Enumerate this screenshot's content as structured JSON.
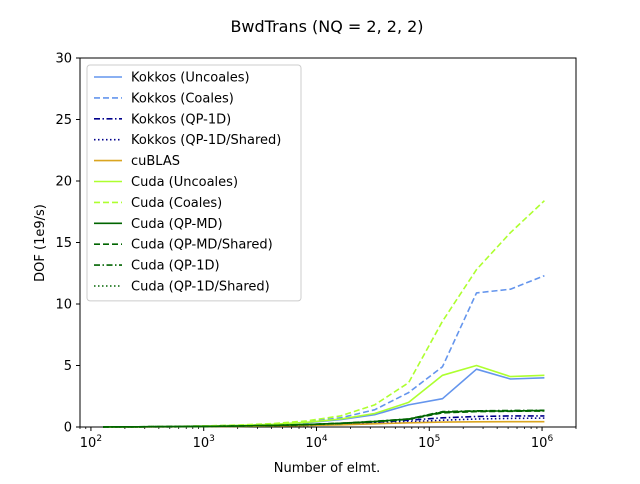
{
  "chart_data": {
    "type": "line",
    "title": "BwdTrans (NQ = 2, 2, 2)",
    "xlabel": "Number of elmt.",
    "ylabel": "DOF (1e9/s)",
    "xscale": "log",
    "xlim": [
      80,
      2000000
    ],
    "ylim": [
      0,
      30
    ],
    "yticks": [
      0,
      5,
      10,
      15,
      20,
      25,
      30
    ],
    "ytick_labels": [
      "0",
      "5",
      "10",
      "15",
      "20",
      "25",
      "30"
    ],
    "xticks": [
      100,
      1000,
      10000,
      100000,
      1000000
    ],
    "xtick_labels": [
      {
        "base": "10",
        "exp": "2"
      },
      {
        "base": "10",
        "exp": "3"
      },
      {
        "base": "10",
        "exp": "4"
      },
      {
        "base": "10",
        "exp": "5"
      },
      {
        "base": "10",
        "exp": "6"
      }
    ],
    "grid": false,
    "legend_position": "upper-left",
    "x": [
      128,
      256,
      512,
      1024,
      2048,
      4096,
      8192,
      16384,
      32768,
      65536,
      131072,
      262144,
      524288,
      1048576
    ],
    "series": [
      {
        "name": "Kokkos (Uncoales)",
        "color": "#6495ed",
        "dash": "solid",
        "values": [
          0.01,
          0.02,
          0.04,
          0.07,
          0.12,
          0.2,
          0.35,
          0.6,
          1.0,
          1.8,
          2.3,
          4.7,
          3.9,
          4.0
        ]
      },
      {
        "name": "Kokkos (Coales)",
        "color": "#6495ed",
        "dash": "dashed",
        "values": [
          0.01,
          0.02,
          0.04,
          0.08,
          0.14,
          0.24,
          0.42,
          0.75,
          1.4,
          2.8,
          4.9,
          10.9,
          11.2,
          12.3
        ]
      },
      {
        "name": "Kokkos (QP-1D)",
        "color": "#00008b",
        "dash": "dashdot",
        "values": [
          0.01,
          0.01,
          0.02,
          0.04,
          0.06,
          0.1,
          0.16,
          0.25,
          0.38,
          0.55,
          0.75,
          0.85,
          0.9,
          0.9
        ]
      },
      {
        "name": "Kokkos (QP-1D/Shared)",
        "color": "#00008b",
        "dash": "dotted",
        "values": [
          0.01,
          0.01,
          0.02,
          0.03,
          0.05,
          0.08,
          0.13,
          0.2,
          0.3,
          0.42,
          0.55,
          0.65,
          0.7,
          0.72
        ]
      },
      {
        "name": "cuBLAS",
        "color": "#daa520",
        "dash": "solid",
        "values": [
          0.01,
          0.01,
          0.02,
          0.03,
          0.05,
          0.08,
          0.12,
          0.18,
          0.26,
          0.34,
          0.4,
          0.42,
          0.43,
          0.43
        ]
      },
      {
        "name": "Cuda (Uncoales)",
        "color": "#adff2f",
        "dash": "solid",
        "values": [
          0.01,
          0.02,
          0.04,
          0.08,
          0.13,
          0.22,
          0.38,
          0.65,
          1.1,
          2.0,
          4.2,
          5.0,
          4.1,
          4.2
        ]
      },
      {
        "name": "Cuda (Coales)",
        "color": "#adff2f",
        "dash": "dashed",
        "values": [
          0.01,
          0.02,
          0.05,
          0.09,
          0.16,
          0.28,
          0.5,
          0.9,
          1.8,
          3.6,
          8.6,
          12.8,
          15.8,
          18.4
        ]
      },
      {
        "name": "Cuda (QP-MD)",
        "color": "#006400",
        "dash": "solid",
        "values": [
          0.01,
          0.02,
          0.03,
          0.05,
          0.08,
          0.13,
          0.2,
          0.3,
          0.45,
          0.65,
          1.2,
          1.3,
          1.3,
          1.35
        ]
      },
      {
        "name": "Cuda (QP-MD/Shared)",
        "color": "#006400",
        "dash": "dashed",
        "values": [
          0.01,
          0.02,
          0.03,
          0.05,
          0.08,
          0.12,
          0.19,
          0.29,
          0.43,
          0.62,
          1.15,
          1.25,
          1.28,
          1.3
        ]
      },
      {
        "name": "Cuda (QP-1D)",
        "color": "#006400",
        "dash": "dashdot",
        "values": [
          0.01,
          0.02,
          0.03,
          0.05,
          0.08,
          0.13,
          0.2,
          0.31,
          0.46,
          0.66,
          1.25,
          1.32,
          1.34,
          1.36
        ]
      },
      {
        "name": "Cuda (QP-1D/Shared)",
        "color": "#006400",
        "dash": "dotted",
        "values": [
          0.01,
          0.02,
          0.03,
          0.05,
          0.08,
          0.12,
          0.19,
          0.3,
          0.44,
          0.64,
          1.2,
          1.28,
          1.3,
          1.32
        ]
      }
    ]
  }
}
